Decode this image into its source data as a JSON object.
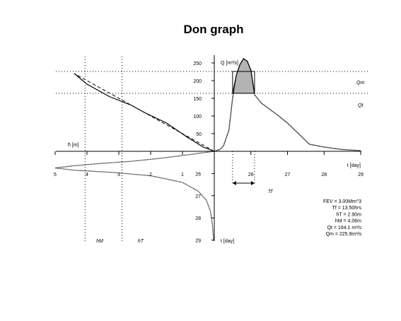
{
  "chart_data": {
    "type": "line",
    "title": "Don graph",
    "quadrants": {
      "hydrograph": {
        "xlabel": "t  [day]",
        "ylabel": "Q  [m³/s]",
        "x_ticks": [
          "26",
          "27",
          "28",
          "29"
        ],
        "y_ticks": [
          "50",
          "100",
          "150",
          "200",
          "250"
        ],
        "xlim": [
          25,
          29
        ],
        "ylim": [
          0,
          270
        ],
        "series": [
          {
            "x": [
              25.0,
              25.15,
              25.25,
              25.4,
              25.5,
              25.6,
              25.7,
              25.8,
              25.9,
              26.0,
              26.1,
              26.3,
              26.5,
              26.7,
              27.0,
              27.3,
              27.6,
              28.0,
              28.5,
              29.0
            ],
            "y": [
              0,
              5,
              15,
              60,
              150,
              215,
              245,
              262,
              255,
              230,
              160,
              135,
              120,
              105,
              80,
              50,
              20,
              12,
              5,
              2
            ]
          }
        ],
        "shaded_peak": {
          "x": [
            25.5,
            26.1
          ],
          "base": 164.1
        }
      },
      "level_curve": {
        "xlabel": "h̄  [m]",
        "x_ticks": [
          "5",
          "4",
          "3",
          "2",
          "1"
        ],
        "xlim": [
          0,
          5
        ],
        "series_solid": {
          "h": [
            0,
            0.35,
            0.85,
            1.5,
            2.2,
            2.6,
            3.3,
            4.0,
            4.4
          ],
          "Q": [
            0,
            12,
            40,
            80,
            110,
            130,
            155,
            190,
            220
          ]
        },
        "series_dashed": {
          "h": [
            0,
            0.6,
            1.2,
            2.0,
            2.8,
            3.6,
            4.4
          ],
          "Q": [
            0,
            30,
            60,
            100,
            140,
            180,
            220
          ]
        },
        "hM": 4.06,
        "hT": 2.9,
        "hM_label": "hM",
        "hT_label": "hT"
      },
      "stage_hydrograph": {
        "ylabel": "t  [day]",
        "y_ticks": [
          "26",
          "27",
          "28",
          "29"
        ],
        "ylim": [
          25,
          29
        ],
        "series": {
          "h": [
            0,
            0.8,
            1.6,
            2.6,
            3.6,
            4.4,
            5.0,
            4.4,
            3.2,
            2.0,
            1.0,
            0.5,
            0.25,
            0.12,
            0.06,
            0.02
          ],
          "t": [
            25.0,
            25.15,
            25.3,
            25.45,
            25.55,
            25.65,
            25.75,
            25.85,
            25.95,
            26.1,
            26.4,
            26.8,
            27.2,
            27.7,
            28.3,
            29.0
          ]
        }
      }
    },
    "reference_lines": {
      "Qm_label": "Qm",
      "Qt_label": "Qt",
      "Qm": 225.9,
      "Qt": 164.1,
      "Tf_label": "Tf"
    },
    "stats": [
      "FEV = 3.00Mm^3",
      "Tf = 13.50hrs",
      "hT = 2.90m",
      "hM = 4.06m",
      "Qt = 164.1  m³/s",
      "Qm = 225.9m³/s"
    ]
  }
}
